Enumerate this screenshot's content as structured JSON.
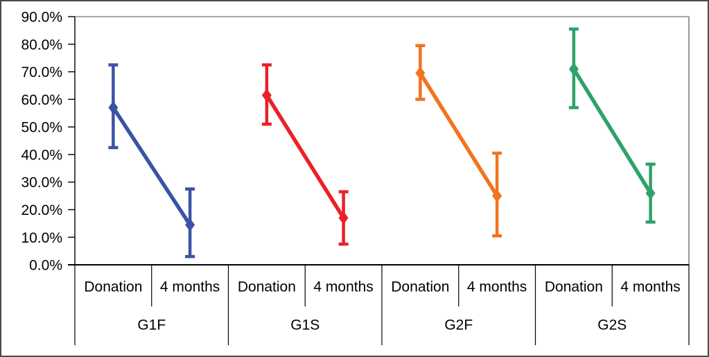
{
  "chart_data": {
    "type": "line",
    "title": "",
    "xlabel": "",
    "ylabel": "",
    "ylim": [
      0,
      90
    ],
    "grid": false,
    "legend": "none",
    "error_bars": true,
    "marker": "diamond",
    "y_ticks": [
      {
        "label": "90.0%",
        "value": 90
      },
      {
        "label": "80.0%",
        "value": 80
      },
      {
        "label": "70.0%",
        "value": 70
      },
      {
        "label": "60.0%",
        "value": 60
      },
      {
        "label": "50.0%",
        "value": 50
      },
      {
        "label": "40.0%",
        "value": 40
      },
      {
        "label": "30.0%",
        "value": 30
      },
      {
        "label": "20.0%",
        "value": 20
      },
      {
        "label": "10.0%",
        "value": 10
      },
      {
        "label": "0.0%",
        "value": 0
      }
    ],
    "x_categories_per_group": [
      "Donation",
      "4 months"
    ],
    "groups": [
      "G1F",
      "G1S",
      "G2F",
      "G2S"
    ],
    "series": [
      {
        "name": "G1F",
        "color": "#3A53A4",
        "points": [
          {
            "category": "Donation",
            "value": 57.0,
            "err_low": 42.5,
            "err_high": 72.5
          },
          {
            "category": "4 months",
            "value": 14.5,
            "err_low": 3.0,
            "err_high": 27.5
          }
        ]
      },
      {
        "name": "G1S",
        "color": "#EB2028",
        "points": [
          {
            "category": "Donation",
            "value": 61.5,
            "err_low": 51.0,
            "err_high": 72.5
          },
          {
            "category": "4 months",
            "value": 17.0,
            "err_low": 7.5,
            "err_high": 26.5
          }
        ]
      },
      {
        "name": "G2F",
        "color": "#F3731F",
        "points": [
          {
            "category": "Donation",
            "value": 69.5,
            "err_low": 60.0,
            "err_high": 79.5
          },
          {
            "category": "4 months",
            "value": 25.0,
            "err_low": 10.5,
            "err_high": 40.5
          }
        ]
      },
      {
        "name": "G2S",
        "color": "#2EA269",
        "points": [
          {
            "category": "Donation",
            "value": 71.0,
            "err_low": 57.0,
            "err_high": 85.5
          },
          {
            "category": "4 months",
            "value": 26.0,
            "err_low": 15.5,
            "err_high": 36.5
          }
        ]
      }
    ],
    "axis_colors": {
      "plot_border": "#8C8C8C",
      "axis_line": "#000000",
      "tick_color": "#000000",
      "label_color": "#000000"
    }
  },
  "figure": {
    "background": "#FFFFFF",
    "frame_border": "#4A4A4A"
  }
}
